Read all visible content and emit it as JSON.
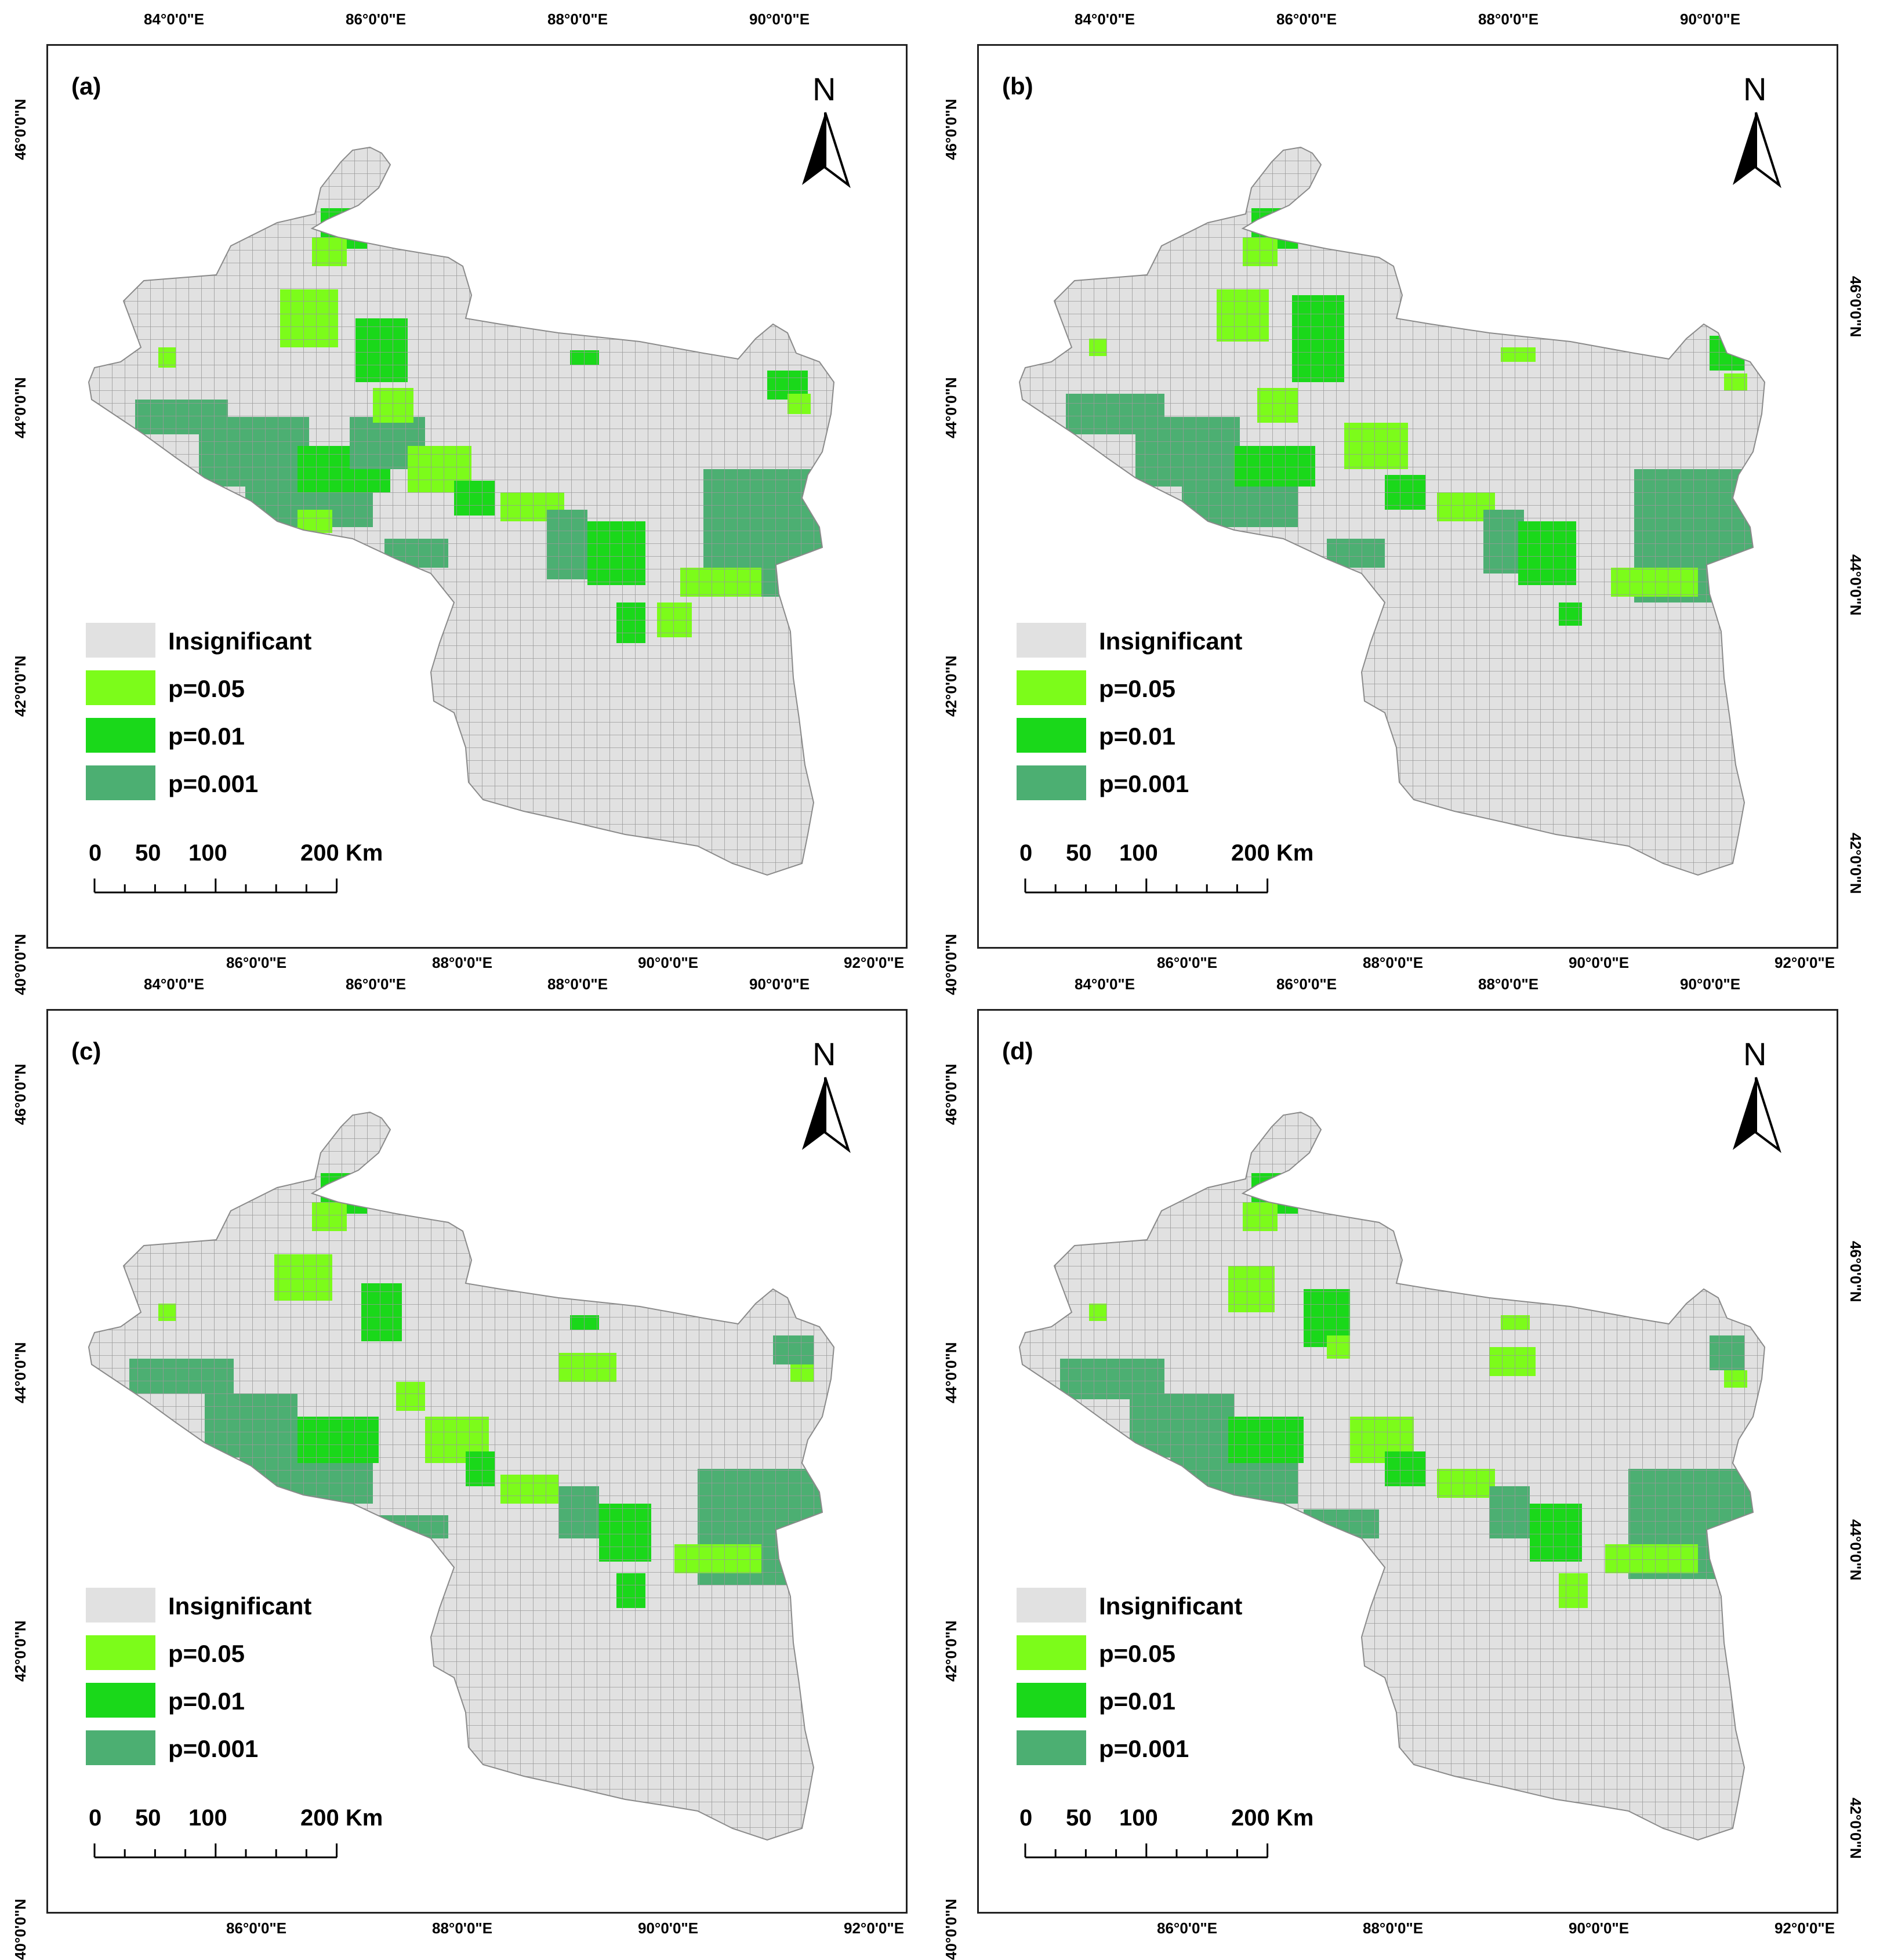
{
  "panels": [
    {
      "label": "(a)"
    },
    {
      "label": "(b)"
    },
    {
      "label": "(c)"
    },
    {
      "label": "(d)"
    }
  ],
  "north_letter": "N",
  "legend": [
    {
      "label": "Insignificant",
      "color": "#e1e1e1"
    },
    {
      "label": "p=0.05",
      "color": "#7cfc1a"
    },
    {
      "label": "p=0.01",
      "color": "#1ad81a"
    },
    {
      "label": "p=0.001",
      "color": "#4caf72"
    }
  ],
  "scale_bar": {
    "zero": "0",
    "fifty": "50",
    "hundred": "100",
    "end": "200 Km"
  },
  "axes": {
    "top_left": [
      "84°0'0\"E",
      "86°0'0\"E",
      "88°0'0\"E",
      "90°0'0\"E"
    ],
    "bottom": [
      "86°0'0\"E",
      "88°0'0\"E",
      "90°0'0\"E",
      "92°0'0\"E"
    ],
    "left": [
      "46°0'0\"N",
      "44°0'0\"N",
      "42°0'0\"N",
      "40°0'0\"N"
    ],
    "right": [
      "46°0'0\"N",
      "44°0'0\"N",
      "42°0'0\"N"
    ]
  }
}
